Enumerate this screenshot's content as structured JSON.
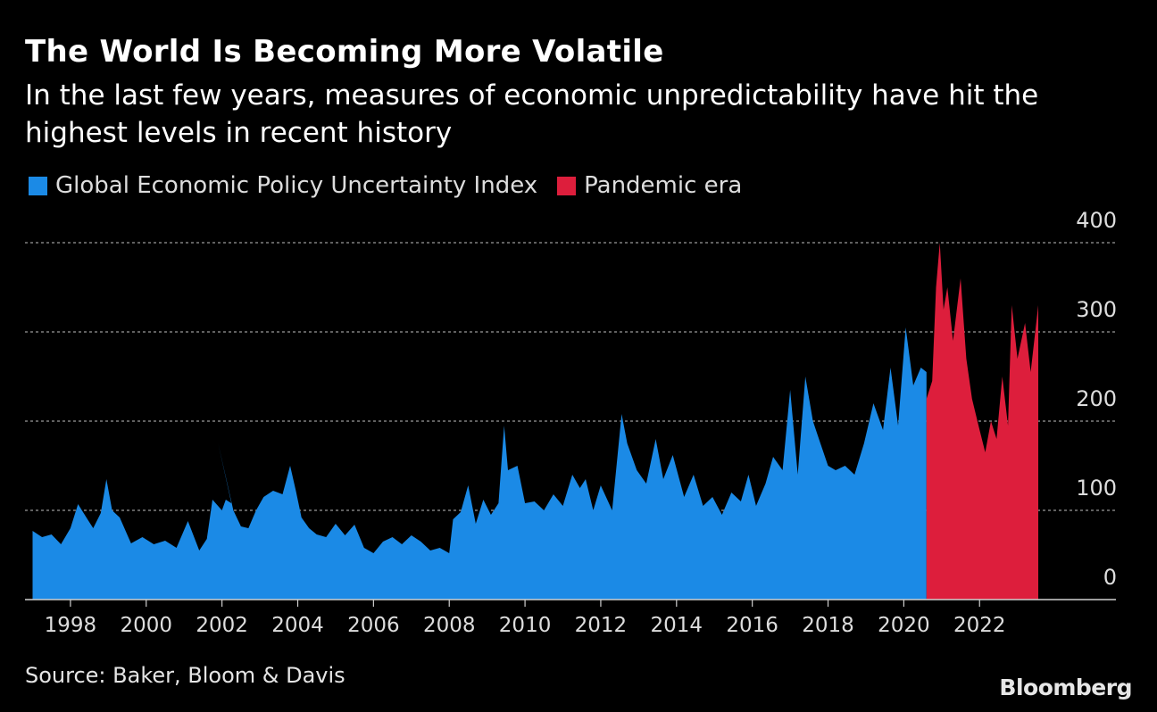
{
  "header": {
    "title": "The World Is Becoming More Volatile",
    "subtitle": "In the last few years, measures of economic unpredictability have hit the highest levels in recent history"
  },
  "legend": {
    "items": [
      {
        "label": "Global Economic Policy Uncertainty Index",
        "color": "#1b8ae6"
      },
      {
        "label": "Pandemic era",
        "color": "#dd1e3c"
      }
    ]
  },
  "footer": {
    "source": "Source: Baker, Bloom & Davis",
    "brand": "Bloomberg"
  },
  "chart_data": {
    "type": "area",
    "title": "The World Is Becoming More Volatile",
    "xlabel": "",
    "ylabel": "",
    "xlim": [
      1996.8,
      2025.6
    ],
    "ylim": [
      0,
      400
    ],
    "y_ticks": [
      0,
      100,
      200,
      300,
      400
    ],
    "x_ticks": [
      1998,
      2000,
      2002,
      2004,
      2006,
      2008,
      2010,
      2012,
      2014,
      2016,
      2018,
      2020,
      2022
    ],
    "grid": true,
    "legend_position": "top-left",
    "series": [
      {
        "name": "Global Economic Policy Uncertainty Index",
        "color": "#1b8ae6",
        "points": [
          [
            1997.0,
            77
          ],
          [
            1997.25,
            70
          ],
          [
            1997.5,
            73
          ],
          [
            1997.75,
            62
          ],
          [
            1998.0,
            80
          ],
          [
            1998.2,
            107
          ],
          [
            1998.45,
            90
          ],
          [
            1998.6,
            80
          ],
          [
            1998.8,
            97
          ],
          [
            1998.95,
            135
          ],
          [
            1999.1,
            100
          ],
          [
            1999.3,
            92
          ],
          [
            1999.6,
            63
          ],
          [
            1999.9,
            70
          ],
          [
            2000.2,
            62
          ],
          [
            2000.5,
            66
          ],
          [
            2000.8,
            58
          ],
          [
            2001.1,
            88
          ],
          [
            2001.4,
            55
          ],
          [
            2001.6,
            68
          ],
          [
            2001.75,
            112
          ],
          [
            2002.0,
            100
          ],
          [
            2002.1,
            112
          ],
          [
            2002.25,
            108
          ],
          [
            2001.9,
            175
          ],
          [
            2002.3,
            100
          ],
          [
            2002.5,
            82
          ],
          [
            2002.7,
            80
          ],
          [
            2002.9,
            100
          ],
          [
            2003.1,
            115
          ],
          [
            2003.35,
            122
          ],
          [
            2003.6,
            118
          ],
          [
            2003.8,
            150
          ],
          [
            2003.95,
            122
          ],
          [
            2004.1,
            92
          ],
          [
            2004.3,
            80
          ],
          [
            2004.5,
            73
          ],
          [
            2004.75,
            70
          ],
          [
            2005.0,
            85
          ],
          [
            2005.25,
            72
          ],
          [
            2005.5,
            84
          ],
          [
            2005.75,
            58
          ],
          [
            2006.0,
            52
          ],
          [
            2006.25,
            65
          ],
          [
            2006.5,
            70
          ],
          [
            2006.75,
            62
          ],
          [
            2007.0,
            72
          ],
          [
            2007.25,
            65
          ],
          [
            2007.5,
            55
          ],
          [
            2007.75,
            58
          ],
          [
            2008.0,
            52
          ],
          [
            2008.1,
            90
          ],
          [
            2008.3,
            98
          ],
          [
            2008.5,
            128
          ],
          [
            2008.7,
            85
          ],
          [
            2008.9,
            112
          ],
          [
            2009.1,
            95
          ],
          [
            2009.3,
            108
          ],
          [
            2009.45,
            195
          ],
          [
            2009.55,
            145
          ],
          [
            2009.8,
            150
          ],
          [
            2010.0,
            108
          ],
          [
            2010.25,
            110
          ],
          [
            2010.5,
            100
          ],
          [
            2010.75,
            118
          ],
          [
            2011.0,
            105
          ],
          [
            2011.25,
            140
          ],
          [
            2011.45,
            125
          ],
          [
            2011.6,
            135
          ],
          [
            2011.8,
            100
          ],
          [
            2012.0,
            128
          ],
          [
            2012.3,
            100
          ],
          [
            2012.55,
            208
          ],
          [
            2012.7,
            175
          ],
          [
            2012.95,
            145
          ],
          [
            2013.2,
            130
          ],
          [
            2013.45,
            180
          ],
          [
            2013.65,
            135
          ],
          [
            2013.9,
            162
          ],
          [
            2014.2,
            115
          ],
          [
            2014.45,
            140
          ],
          [
            2014.7,
            105
          ],
          [
            2014.95,
            115
          ],
          [
            2015.2,
            95
          ],
          [
            2015.45,
            120
          ],
          [
            2015.7,
            110
          ],
          [
            2015.9,
            140
          ],
          [
            2016.1,
            105
          ],
          [
            2016.35,
            130
          ],
          [
            2016.55,
            160
          ],
          [
            2016.8,
            145
          ],
          [
            2017.0,
            235
          ],
          [
            2017.2,
            140
          ],
          [
            2017.4,
            250
          ],
          [
            2017.6,
            200
          ],
          [
            2017.8,
            175
          ],
          [
            2018.0,
            150
          ],
          [
            2018.2,
            145
          ],
          [
            2018.45,
            150
          ],
          [
            2018.7,
            140
          ],
          [
            2018.95,
            175
          ],
          [
            2019.2,
            220
          ],
          [
            2019.45,
            190
          ],
          [
            2019.65,
            260
          ],
          [
            2019.85,
            195
          ],
          [
            2020.05,
            305
          ],
          [
            2020.25,
            240
          ],
          [
            2020.45,
            260
          ],
          [
            2020.6,
            255
          ]
        ]
      },
      {
        "name": "Pandemic era",
        "color": "#dd1e3c",
        "points": [
          [
            2020.6,
            225
          ],
          [
            2020.75,
            245
          ],
          [
            2020.85,
            350
          ],
          [
            2020.95,
            400
          ],
          [
            2021.05,
            325
          ],
          [
            2021.15,
            350
          ],
          [
            2021.3,
            290
          ],
          [
            2021.5,
            360
          ],
          [
            2021.65,
            270
          ],
          [
            2021.8,
            225
          ],
          [
            2022.0,
            190
          ],
          [
            2022.15,
            165
          ],
          [
            2022.3,
            200
          ],
          [
            2022.45,
            180
          ],
          [
            2022.6,
            250
          ],
          [
            2022.75,
            195
          ],
          [
            2022.85,
            330
          ],
          [
            2023.0,
            270
          ],
          [
            2023.2,
            310
          ],
          [
            2023.35,
            255
          ],
          [
            2023.55,
            330
          ]
        ]
      }
    ]
  }
}
